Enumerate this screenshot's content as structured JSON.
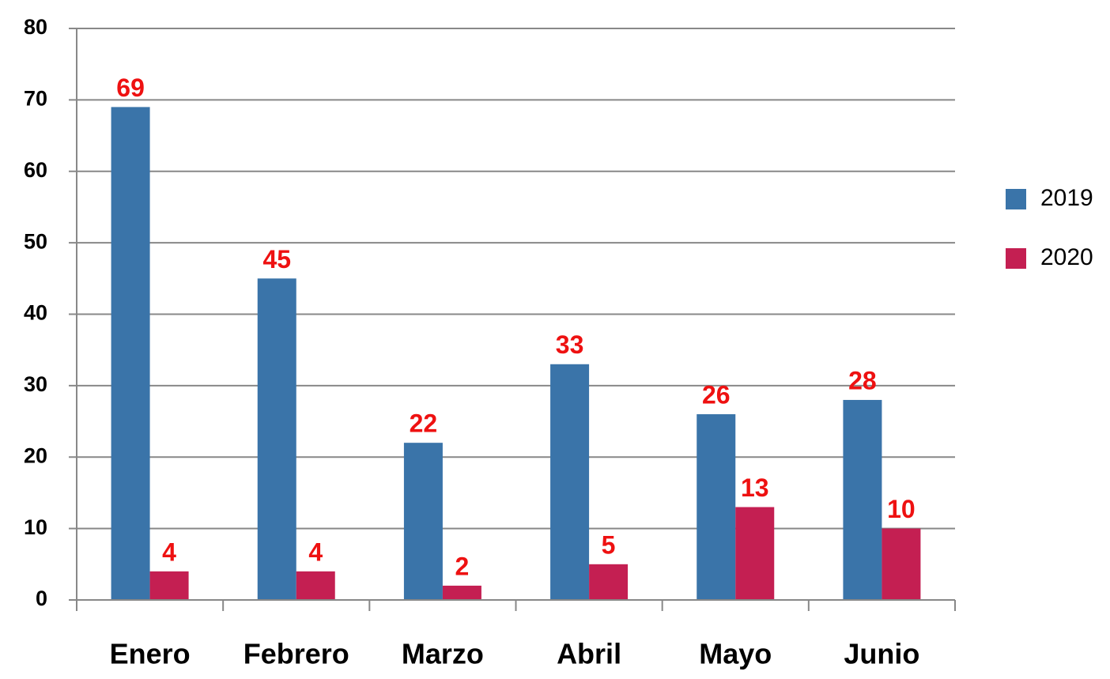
{
  "chart_data": {
    "type": "bar",
    "categories": [
      "Enero",
      "Febrero",
      "Marzo",
      "Abril",
      "Mayo",
      "Junio"
    ],
    "series": [
      {
        "name": "2019",
        "color": "#3a74a9",
        "values": [
          69,
          45,
          22,
          33,
          26,
          28
        ]
      },
      {
        "name": "2020",
        "color": "#c41f52",
        "values": [
          4,
          4,
          2,
          5,
          13,
          10
        ]
      }
    ],
    "ylim": [
      0,
      80
    ],
    "yticks": [
      0,
      10,
      20,
      30,
      40,
      50,
      60,
      70,
      80
    ],
    "grid": true,
    "legend": "right"
  }
}
